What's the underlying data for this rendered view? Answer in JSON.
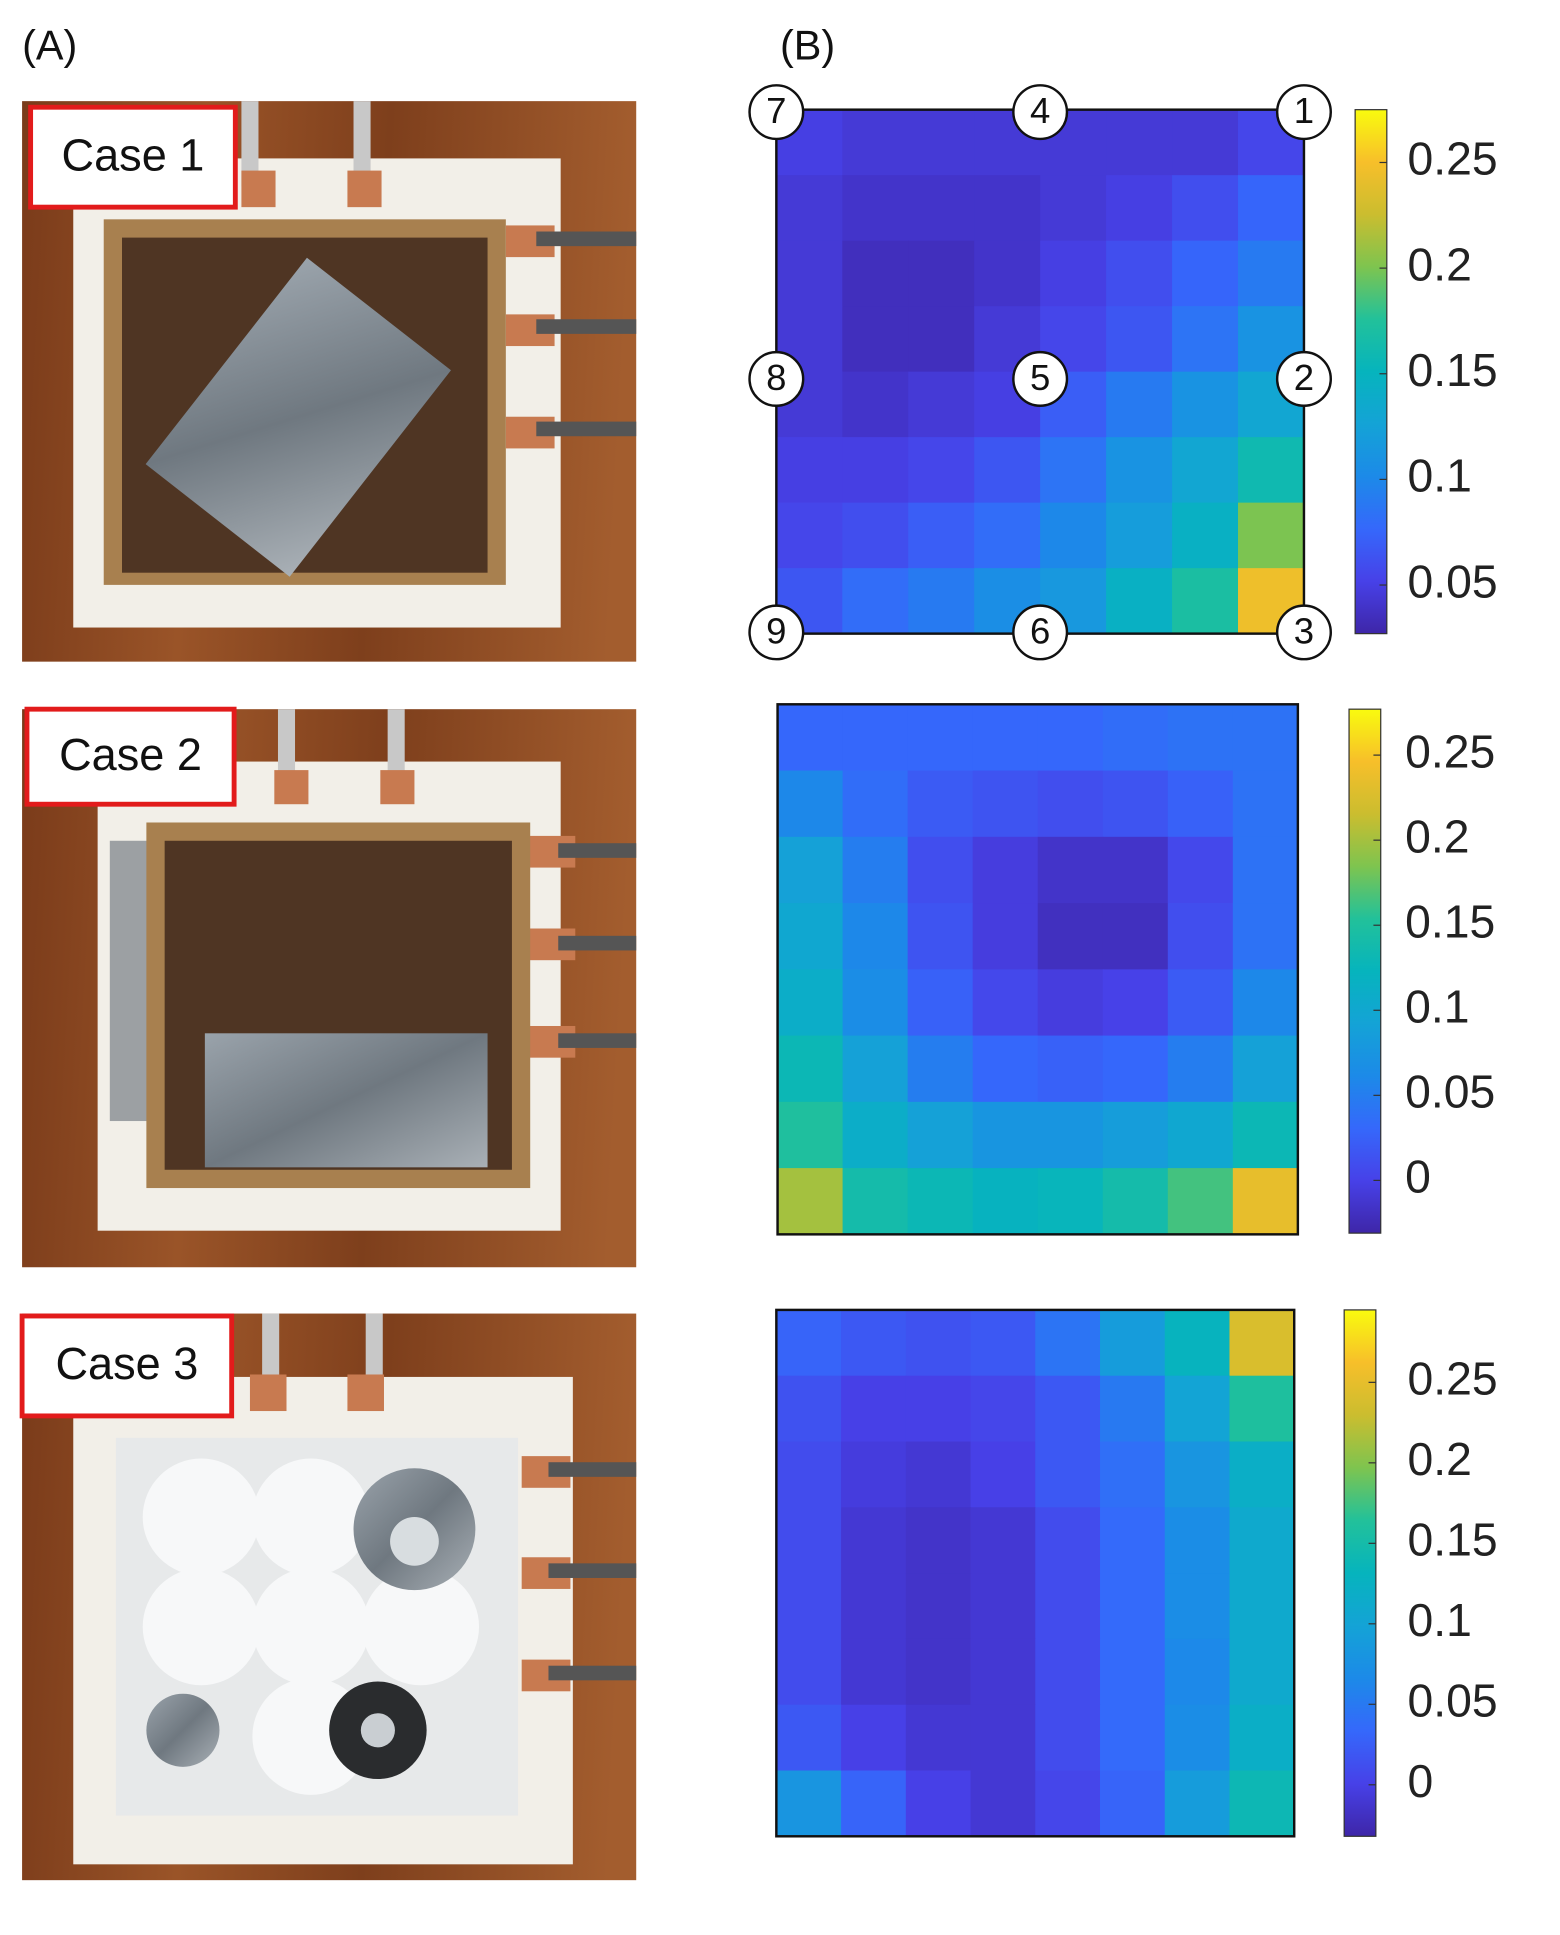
{
  "panel_labels": [
    "(A)",
    "(B)"
  ],
  "cases": [
    "Case 1",
    "Case 2",
    "Case 3"
  ],
  "chart_data": [
    {
      "type": "heatmap",
      "colormap": "parula",
      "zlim": [
        0.027,
        0.275
      ],
      "zticks": [
        0.05,
        0.1,
        0.15,
        0.2,
        0.25
      ],
      "annotations": [
        "7",
        "4",
        "1",
        "8",
        "5",
        "2",
        "9",
        "6",
        "3"
      ],
      "values": [
        [
          0.05,
          0.045,
          0.045,
          0.045,
          0.045,
          0.045,
          0.045,
          0.055
        ],
        [
          0.045,
          0.04,
          0.04,
          0.04,
          0.045,
          0.05,
          0.06,
          0.075
        ],
        [
          0.045,
          0.035,
          0.035,
          0.04,
          0.05,
          0.06,
          0.075,
          0.09
        ],
        [
          0.045,
          0.035,
          0.035,
          0.045,
          0.055,
          0.065,
          0.085,
          0.11
        ],
        [
          0.045,
          0.04,
          0.045,
          0.05,
          0.07,
          0.09,
          0.11,
          0.13
        ],
        [
          0.05,
          0.05,
          0.055,
          0.065,
          0.085,
          0.11,
          0.13,
          0.16
        ],
        [
          0.055,
          0.06,
          0.07,
          0.08,
          0.1,
          0.12,
          0.145,
          0.2
        ],
        [
          0.065,
          0.08,
          0.09,
          0.105,
          0.115,
          0.145,
          0.17,
          0.245
        ]
      ]
    },
    {
      "type": "heatmap",
      "colormap": "parula",
      "zlim": [
        -0.031,
        0.277
      ],
      "zticks": [
        0,
        0.05,
        0.1,
        0.15,
        0.2,
        0.25
      ],
      "values": [
        [
          0.03,
          0.03,
          0.03,
          0.03,
          0.03,
          0.035,
          0.04,
          0.04
        ],
        [
          0.06,
          0.035,
          0.02,
          0.015,
          0.01,
          0.015,
          0.025,
          0.04
        ],
        [
          0.09,
          0.05,
          0.01,
          -0.005,
          -0.015,
          -0.015,
          0.005,
          0.04
        ],
        [
          0.1,
          0.06,
          0.015,
          -0.005,
          -0.02,
          -0.02,
          0.01,
          0.04
        ],
        [
          0.11,
          0.065,
          0.025,
          0.005,
          -0.005,
          0,
          0.02,
          0.06
        ],
        [
          0.13,
          0.09,
          0.05,
          0.03,
          0.025,
          0.03,
          0.05,
          0.09
        ],
        [
          0.15,
          0.11,
          0.09,
          0.075,
          0.075,
          0.085,
          0.1,
          0.13
        ],
        [
          0.2,
          0.14,
          0.13,
          0.12,
          0.125,
          0.14,
          0.165,
          0.235
        ]
      ]
    },
    {
      "type": "heatmap",
      "colormap": "parula",
      "zlim": [
        -0.032,
        0.295
      ],
      "zticks": [
        0,
        0.05,
        0.1,
        0.15,
        0.2,
        0.25
      ],
      "values": [
        [
          0.03,
          0.02,
          0.015,
          0.02,
          0.045,
          0.09,
          0.13,
          0.24
        ],
        [
          0.015,
          0,
          0,
          0.005,
          0.02,
          0.05,
          0.1,
          0.16
        ],
        [
          0.01,
          -0.005,
          -0.01,
          0,
          0.02,
          0.04,
          0.08,
          0.12
        ],
        [
          0.01,
          -0.01,
          -0.015,
          -0.01,
          0.01,
          0.035,
          0.07,
          0.11
        ],
        [
          0.01,
          -0.01,
          -0.015,
          -0.01,
          0.01,
          0.035,
          0.07,
          0.11
        ],
        [
          0.01,
          -0.01,
          -0.015,
          -0.01,
          0.01,
          0.035,
          0.065,
          0.11
        ],
        [
          0.02,
          0,
          -0.01,
          -0.01,
          0.01,
          0.035,
          0.07,
          0.12
        ],
        [
          0.08,
          0.03,
          0,
          -0.01,
          0.005,
          0.03,
          0.09,
          0.14
        ]
      ]
    }
  ]
}
